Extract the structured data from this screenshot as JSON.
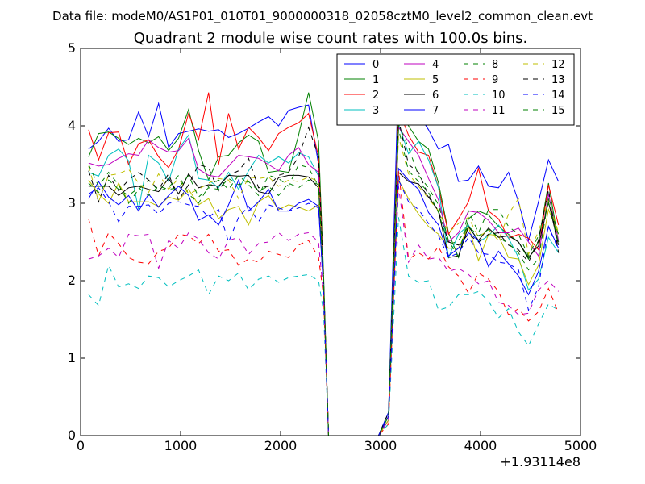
{
  "chart_data": {
    "type": "line",
    "suptitle": "Data file: modeM0/AS1P01_010T01_9000000318_02058cztM0_level2_common_clean.evt",
    "title": "Quadrant 2 module wise count rates with 100.0s bins.",
    "xlabel": "",
    "ylabel": "",
    "x_offset_label": "+1.93114e8",
    "xlim": [
      0,
      5000
    ],
    "ylim": [
      0,
      5
    ],
    "x_ticks": [
      0,
      1000,
      2000,
      3000,
      4000,
      5000
    ],
    "x_tick_labels": [
      "0",
      "1000",
      "2000",
      "3000",
      "4000",
      "5000"
    ],
    "y_ticks": [
      0,
      1,
      2,
      3,
      4,
      5
    ],
    "y_tick_labels": [
      "0",
      "1",
      "2",
      "3",
      "4",
      "5"
    ],
    "grid": false,
    "legend_position": "top-right",
    "legend_columns": 4,
    "x": [
      80,
      180,
      280,
      380,
      480,
      580,
      680,
      780,
      880,
      980,
      1080,
      1180,
      1280,
      1380,
      1480,
      1580,
      1680,
      1780,
      1880,
      1980,
      2080,
      2180,
      2280,
      2380,
      2430,
      2480,
      2580,
      2680,
      2780,
      2880,
      2980,
      3080,
      3180,
      3280,
      3380,
      3480,
      3580,
      3680,
      3780,
      3880,
      3980,
      4080,
      4180,
      4280,
      4380,
      4480,
      4580,
      4680,
      4780
    ],
    "series": [
      {
        "name": "0",
        "color": "#0000ff",
        "dash": "solid",
        "values": [
          3.7,
          3.8,
          3.97,
          3.8,
          3.82,
          4.18,
          3.86,
          4.29,
          3.72,
          3.9,
          3.93,
          3.96,
          3.93,
          3.95,
          3.85,
          3.9,
          3.97,
          4.05,
          4.12,
          4.0,
          4.2,
          4.24,
          4.27,
          3.5,
          2.0,
          0.0,
          0.0,
          0.0,
          0.0,
          0.0,
          0.0,
          0.3,
          4.7,
          4.42,
          4.15,
          3.95,
          3.7,
          3.76,
          3.28,
          3.3,
          3.48,
          3.22,
          3.2,
          3.4,
          3.02,
          2.52,
          3.02,
          3.56,
          3.28
        ]
      },
      {
        "name": "1",
        "color": "#008000",
        "dash": "solid",
        "values": [
          3.6,
          3.9,
          3.92,
          3.84,
          3.76,
          3.84,
          3.78,
          3.86,
          3.68,
          3.84,
          4.21,
          3.68,
          3.3,
          3.6,
          3.62,
          3.78,
          3.88,
          3.8,
          3.4,
          3.42,
          3.4,
          3.88,
          4.43,
          3.8,
          2.1,
          0.0,
          0.0,
          0.0,
          0.0,
          0.0,
          0.0,
          0.25,
          4.26,
          4.0,
          3.8,
          3.7,
          3.26,
          2.62,
          2.3,
          2.8,
          2.9,
          2.85,
          2.7,
          2.6,
          2.5,
          2.28,
          2.5,
          3.26,
          2.5
        ]
      },
      {
        "name": "2",
        "color": "#ff0000",
        "dash": "solid",
        "values": [
          3.95,
          3.56,
          3.91,
          3.92,
          3.5,
          3.77,
          3.82,
          3.6,
          3.46,
          3.7,
          4.16,
          3.82,
          4.43,
          3.5,
          4.16,
          3.7,
          3.98,
          3.85,
          3.68,
          3.9,
          3.98,
          4.04,
          4.16,
          3.6,
          2.0,
          0.0,
          0.0,
          0.0,
          0.0,
          0.0,
          0.0,
          0.2,
          4.2,
          3.88,
          3.66,
          3.62,
          3.2,
          2.6,
          2.8,
          3.02,
          3.45,
          2.9,
          2.8,
          2.55,
          2.6,
          2.55,
          2.4,
          3.24,
          2.72
        ]
      },
      {
        "name": "3",
        "color": "#00bfbf",
        "dash": "solid",
        "values": [
          3.4,
          3.35,
          3.62,
          3.7,
          3.55,
          2.92,
          3.62,
          3.52,
          3.28,
          3.7,
          3.88,
          3.32,
          3.3,
          3.2,
          3.4,
          3.18,
          3.42,
          3.62,
          3.52,
          3.6,
          3.52,
          3.65,
          3.6,
          3.35,
          1.9,
          0.0,
          0.0,
          0.0,
          0.0,
          0.0,
          0.0,
          0.25,
          4.02,
          3.64,
          3.8,
          3.56,
          3.2,
          2.3,
          2.6,
          2.72,
          2.5,
          2.58,
          2.72,
          2.55,
          2.3,
          1.88,
          2.02,
          2.56,
          2.36
        ]
      },
      {
        "name": "4",
        "color": "#bf00bf",
        "dash": "solid",
        "values": [
          3.52,
          3.48,
          3.5,
          3.58,
          3.64,
          3.62,
          3.82,
          3.72,
          3.66,
          3.68,
          3.84,
          3.44,
          3.36,
          3.34,
          3.48,
          3.62,
          3.6,
          3.58,
          3.5,
          3.42,
          3.62,
          3.72,
          3.5,
          3.4,
          2.0,
          0.0,
          0.0,
          0.0,
          0.0,
          0.0,
          0.0,
          0.2,
          3.98,
          3.8,
          3.62,
          3.32,
          3.04,
          2.5,
          2.62,
          2.9,
          2.88,
          2.78,
          2.62,
          2.62,
          2.68,
          2.5,
          2.32,
          3.12,
          2.52
        ]
      },
      {
        "name": "5",
        "color": "#bfbf00",
        "dash": "solid",
        "values": [
          3.3,
          3.12,
          3.0,
          3.26,
          3.02,
          3.02,
          3.02,
          2.96,
          3.08,
          3.04,
          3.18,
          2.98,
          3.06,
          2.8,
          2.92,
          2.96,
          2.72,
          3.02,
          3.1,
          2.92,
          2.98,
          2.95,
          2.9,
          2.98,
          1.9,
          0.0,
          0.0,
          0.0,
          0.0,
          0.0,
          0.0,
          0.2,
          3.3,
          3.06,
          2.86,
          2.7,
          2.6,
          2.42,
          2.42,
          2.7,
          2.26,
          2.6,
          2.58,
          2.3,
          2.28,
          1.95,
          2.2,
          2.92,
          2.6
        ]
      },
      {
        "name": "6",
        "color": "#000000",
        "dash": "solid",
        "values": [
          3.22,
          3.22,
          3.22,
          3.1,
          3.2,
          3.22,
          3.18,
          3.15,
          3.32,
          3.12,
          3.38,
          3.2,
          3.24,
          3.22,
          3.36,
          3.35,
          3.36,
          3.15,
          3.12,
          3.33,
          3.36,
          3.36,
          3.34,
          3.2,
          2.0,
          0.0,
          0.0,
          0.0,
          0.0,
          0.0,
          0.0,
          0.3,
          3.4,
          3.28,
          3.25,
          3.08,
          2.9,
          2.3,
          2.32,
          2.7,
          2.52,
          2.68,
          2.56,
          2.58,
          2.5,
          2.3,
          2.45,
          3.02,
          2.46
        ]
      },
      {
        "name": "7",
        "color": "#0000ff",
        "dash": "solid",
        "values": [
          3.06,
          3.28,
          3.08,
          2.98,
          3.1,
          2.9,
          3.12,
          2.95,
          3.1,
          3.22,
          3.1,
          2.78,
          2.85,
          2.72,
          2.98,
          3.3,
          2.9,
          3.02,
          3.18,
          2.9,
          2.9,
          3.0,
          3.05,
          2.96,
          1.9,
          0.0,
          0.0,
          0.0,
          0.0,
          0.0,
          0.0,
          0.3,
          3.45,
          3.3,
          3.18,
          2.88,
          2.72,
          2.32,
          2.42,
          2.62,
          2.52,
          2.18,
          2.38,
          2.22,
          2.06,
          1.82,
          2.12,
          2.7,
          2.42
        ]
      },
      {
        "name": "8",
        "color": "#008000",
        "dash": "dashed",
        "values": [
          3.5,
          3.22,
          3.4,
          3.24,
          3.0,
          3.18,
          3.3,
          3.16,
          3.2,
          3.36,
          3.12,
          3.0,
          3.22,
          3.3,
          3.18,
          3.36,
          3.24,
          3.1,
          3.36,
          3.32,
          3.22,
          3.5,
          3.46,
          3.22,
          2.0,
          0.0,
          0.0,
          0.0,
          0.0,
          0.0,
          0.0,
          0.25,
          4.02,
          3.72,
          3.36,
          3.2,
          2.98,
          2.52,
          2.3,
          2.9,
          2.62,
          2.92,
          2.92,
          2.7,
          2.6,
          2.32,
          2.58,
          3.0,
          2.6
        ]
      },
      {
        "name": "9",
        "color": "#ff0000",
        "dash": "dashed",
        "values": [
          2.8,
          2.32,
          2.62,
          2.48,
          2.3,
          2.24,
          2.22,
          2.38,
          2.42,
          2.6,
          2.58,
          2.48,
          2.6,
          2.38,
          2.4,
          2.2,
          2.28,
          2.24,
          2.38,
          2.34,
          2.3,
          2.46,
          2.52,
          2.3,
          1.8,
          0.0,
          0.0,
          0.0,
          0.0,
          0.0,
          0.0,
          0.15,
          3.42,
          2.28,
          2.36,
          2.28,
          2.44,
          2.18,
          2.06,
          1.84,
          2.1,
          2.02,
          1.86,
          1.56,
          1.64,
          1.48,
          1.6,
          1.9,
          1.58
        ]
      },
      {
        "name": "10",
        "color": "#00bfbf",
        "dash": "dashed",
        "values": [
          1.82,
          1.68,
          2.2,
          1.92,
          1.96,
          1.9,
          2.06,
          2.04,
          1.92,
          2.0,
          2.06,
          2.14,
          1.82,
          2.06,
          2.0,
          2.1,
          1.88,
          2.02,
          2.06,
          1.98,
          2.04,
          2.06,
          2.08,
          2.0,
          1.6,
          0.0,
          0.0,
          0.0,
          0.0,
          0.0,
          0.0,
          0.15,
          2.82,
          2.06,
          1.98,
          2.0,
          1.62,
          1.66,
          1.82,
          1.82,
          1.86,
          1.74,
          1.52,
          1.64,
          1.34,
          1.16,
          1.44,
          1.7,
          1.62
        ]
      },
      {
        "name": "11",
        "color": "#bf00bf",
        "dash": "dashed",
        "values": [
          2.28,
          2.32,
          2.42,
          2.3,
          2.6,
          2.58,
          2.6,
          2.16,
          2.52,
          2.42,
          2.62,
          2.54,
          2.36,
          2.28,
          2.52,
          2.56,
          2.34,
          2.48,
          2.5,
          2.62,
          2.52,
          2.6,
          2.62,
          2.5,
          1.8,
          0.0,
          0.0,
          0.0,
          0.0,
          0.0,
          0.0,
          0.2,
          3.22,
          2.24,
          2.46,
          2.28,
          2.3,
          2.12,
          2.16,
          2.08,
          1.96,
          2.0,
          1.72,
          1.68,
          1.56,
          1.58,
          1.88,
          2.0,
          1.86
        ]
      },
      {
        "name": "12",
        "color": "#bfbf00",
        "dash": "dashed",
        "values": [
          3.48,
          3.02,
          3.36,
          3.38,
          3.44,
          3.26,
          3.14,
          3.38,
          3.18,
          3.32,
          3.12,
          3.18,
          3.26,
          3.32,
          3.3,
          3.06,
          3.34,
          3.32,
          3.34,
          3.22,
          3.3,
          3.28,
          3.34,
          3.28,
          2.0,
          0.0,
          0.0,
          0.0,
          0.0,
          0.0,
          0.0,
          0.25,
          3.86,
          3.38,
          3.22,
          3.06,
          2.9,
          2.62,
          2.74,
          2.82,
          2.56,
          2.66,
          2.52,
          2.86,
          3.06,
          2.34,
          2.64,
          3.04,
          2.62
        ]
      },
      {
        "name": "13",
        "color": "#000000",
        "dash": "dashed",
        "values": [
          3.42,
          3.02,
          3.36,
          3.16,
          3.3,
          3.4,
          3.3,
          3.18,
          3.38,
          3.04,
          3.24,
          3.5,
          3.46,
          3.16,
          3.36,
          3.42,
          3.58,
          3.2,
          3.22,
          3.36,
          3.4,
          3.6,
          3.98,
          3.6,
          2.0,
          0.0,
          0.0,
          0.0,
          0.0,
          0.0,
          0.0,
          0.3,
          4.08,
          3.5,
          3.4,
          3.1,
          2.9,
          2.5,
          2.46,
          2.6,
          2.5,
          2.6,
          2.62,
          2.46,
          2.4,
          2.24,
          2.52,
          3.18,
          2.36
        ]
      },
      {
        "name": "14",
        "color": "#0000ff",
        "dash": "dashed",
        "values": [
          3.12,
          3.2,
          3.02,
          2.76,
          2.96,
          2.96,
          2.98,
          2.86,
          3.0,
          3.02,
          2.98,
          2.96,
          2.82,
          2.92,
          2.5,
          2.82,
          2.96,
          2.76,
          2.98,
          2.94,
          2.9,
          2.94,
          3.0,
          2.94,
          1.9,
          0.0,
          0.0,
          0.0,
          0.0,
          0.0,
          0.0,
          0.25,
          3.3,
          3.02,
          2.92,
          2.74,
          2.58,
          2.3,
          2.36,
          2.56,
          2.36,
          2.34,
          2.24,
          2.22,
          2.14,
          1.62,
          1.92,
          2.7,
          2.4
        ]
      },
      {
        "name": "15",
        "color": "#008000",
        "dash": "dashed",
        "values": [
          3.26,
          3.14,
          3.3,
          3.18,
          3.1,
          3.2,
          3.1,
          3.22,
          3.18,
          3.2,
          3.36,
          3.08,
          3.2,
          3.18,
          3.32,
          3.24,
          3.28,
          3.16,
          3.22,
          3.1,
          3.26,
          3.2,
          3.3,
          3.24,
          2.0,
          0.0,
          0.0,
          0.0,
          0.0,
          0.0,
          0.0,
          0.25,
          3.96,
          3.42,
          3.28,
          3.14,
          2.88,
          2.46,
          2.52,
          2.7,
          2.58,
          2.66,
          2.56,
          2.48,
          2.36,
          2.14,
          2.28,
          3.06,
          2.48
        ]
      }
    ]
  }
}
